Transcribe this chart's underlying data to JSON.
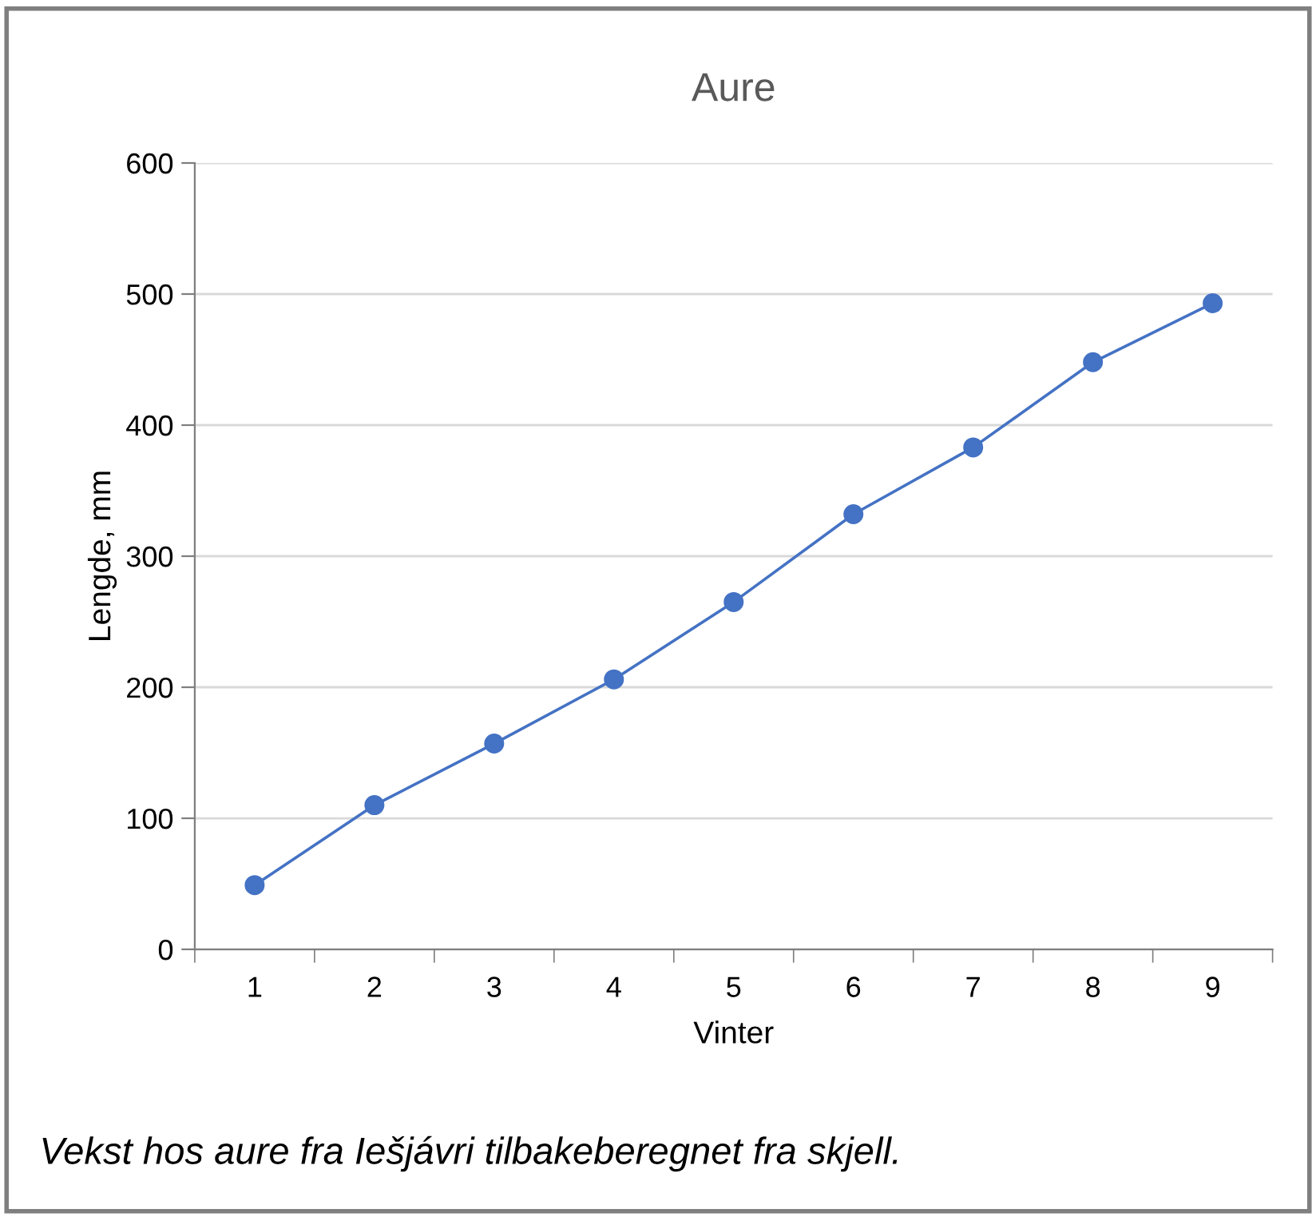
{
  "chart_data": {
    "type": "line",
    "title": "Aure",
    "xlabel": "Vinter",
    "ylabel": "Lengde, mm",
    "categories": [
      "1",
      "2",
      "3",
      "4",
      "5",
      "6",
      "7",
      "8",
      "9"
    ],
    "series": [
      {
        "color": "#4472c4",
        "values": [
          49,
          110,
          157,
          206,
          265,
          332,
          383,
          448,
          493
        ]
      }
    ],
    "ylim": [
      0,
      600
    ],
    "yticks": [
      0,
      100,
      200,
      300,
      400,
      500,
      600
    ],
    "grid": "y",
    "marker": "circle",
    "line_style": "solid",
    "annotations": [
      "Vekst hos aure fra Iešjávri tilbakeberegnet fra skjell."
    ]
  }
}
